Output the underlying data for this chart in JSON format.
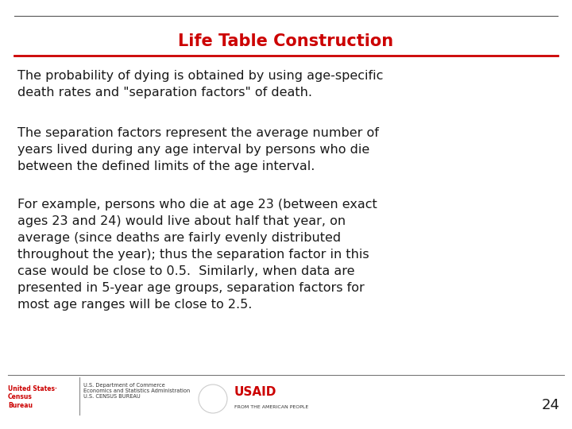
{
  "title": "Life Table Construction",
  "title_color": "#CC0000",
  "title_fontsize": 15,
  "background_color": "#FFFFFF",
  "line_color": "#CC0000",
  "paragraph1": "The probability of dying is obtained by using age-specific\ndeath rates and \"separation factors\" of death.",
  "paragraph2": "The separation factors represent the average number of\nyears lived during any age interval by persons who die\nbetween the defined limits of the age interval.",
  "paragraph3": "For example, persons who die at age 23 (between exact\nages 23 and 24) would live about half that year, on\naverage (since deaths are fairly evenly distributed\nthroughout the year); thus the separation factor in this\ncase would be close to 0.5.  Similarly, when data are\npresented in 5-year age groups, separation factors for\nmost age ranges will be close to 2.5.",
  "text_color": "#1a1a1a",
  "text_fontsize": 11.5,
  "page_number": "24",
  "page_num_fontsize": 13,
  "footer_census_text": "United States\nCensus\nBureau",
  "footer_dept_text": "U.S. Department of Commerce\nEconomics and Statistics Administration\nU.S. CENSUS BUREAU",
  "footer_usaid": "USAID",
  "footer_usaid_sub": "FROM THE AMERICAN PEOPLE"
}
